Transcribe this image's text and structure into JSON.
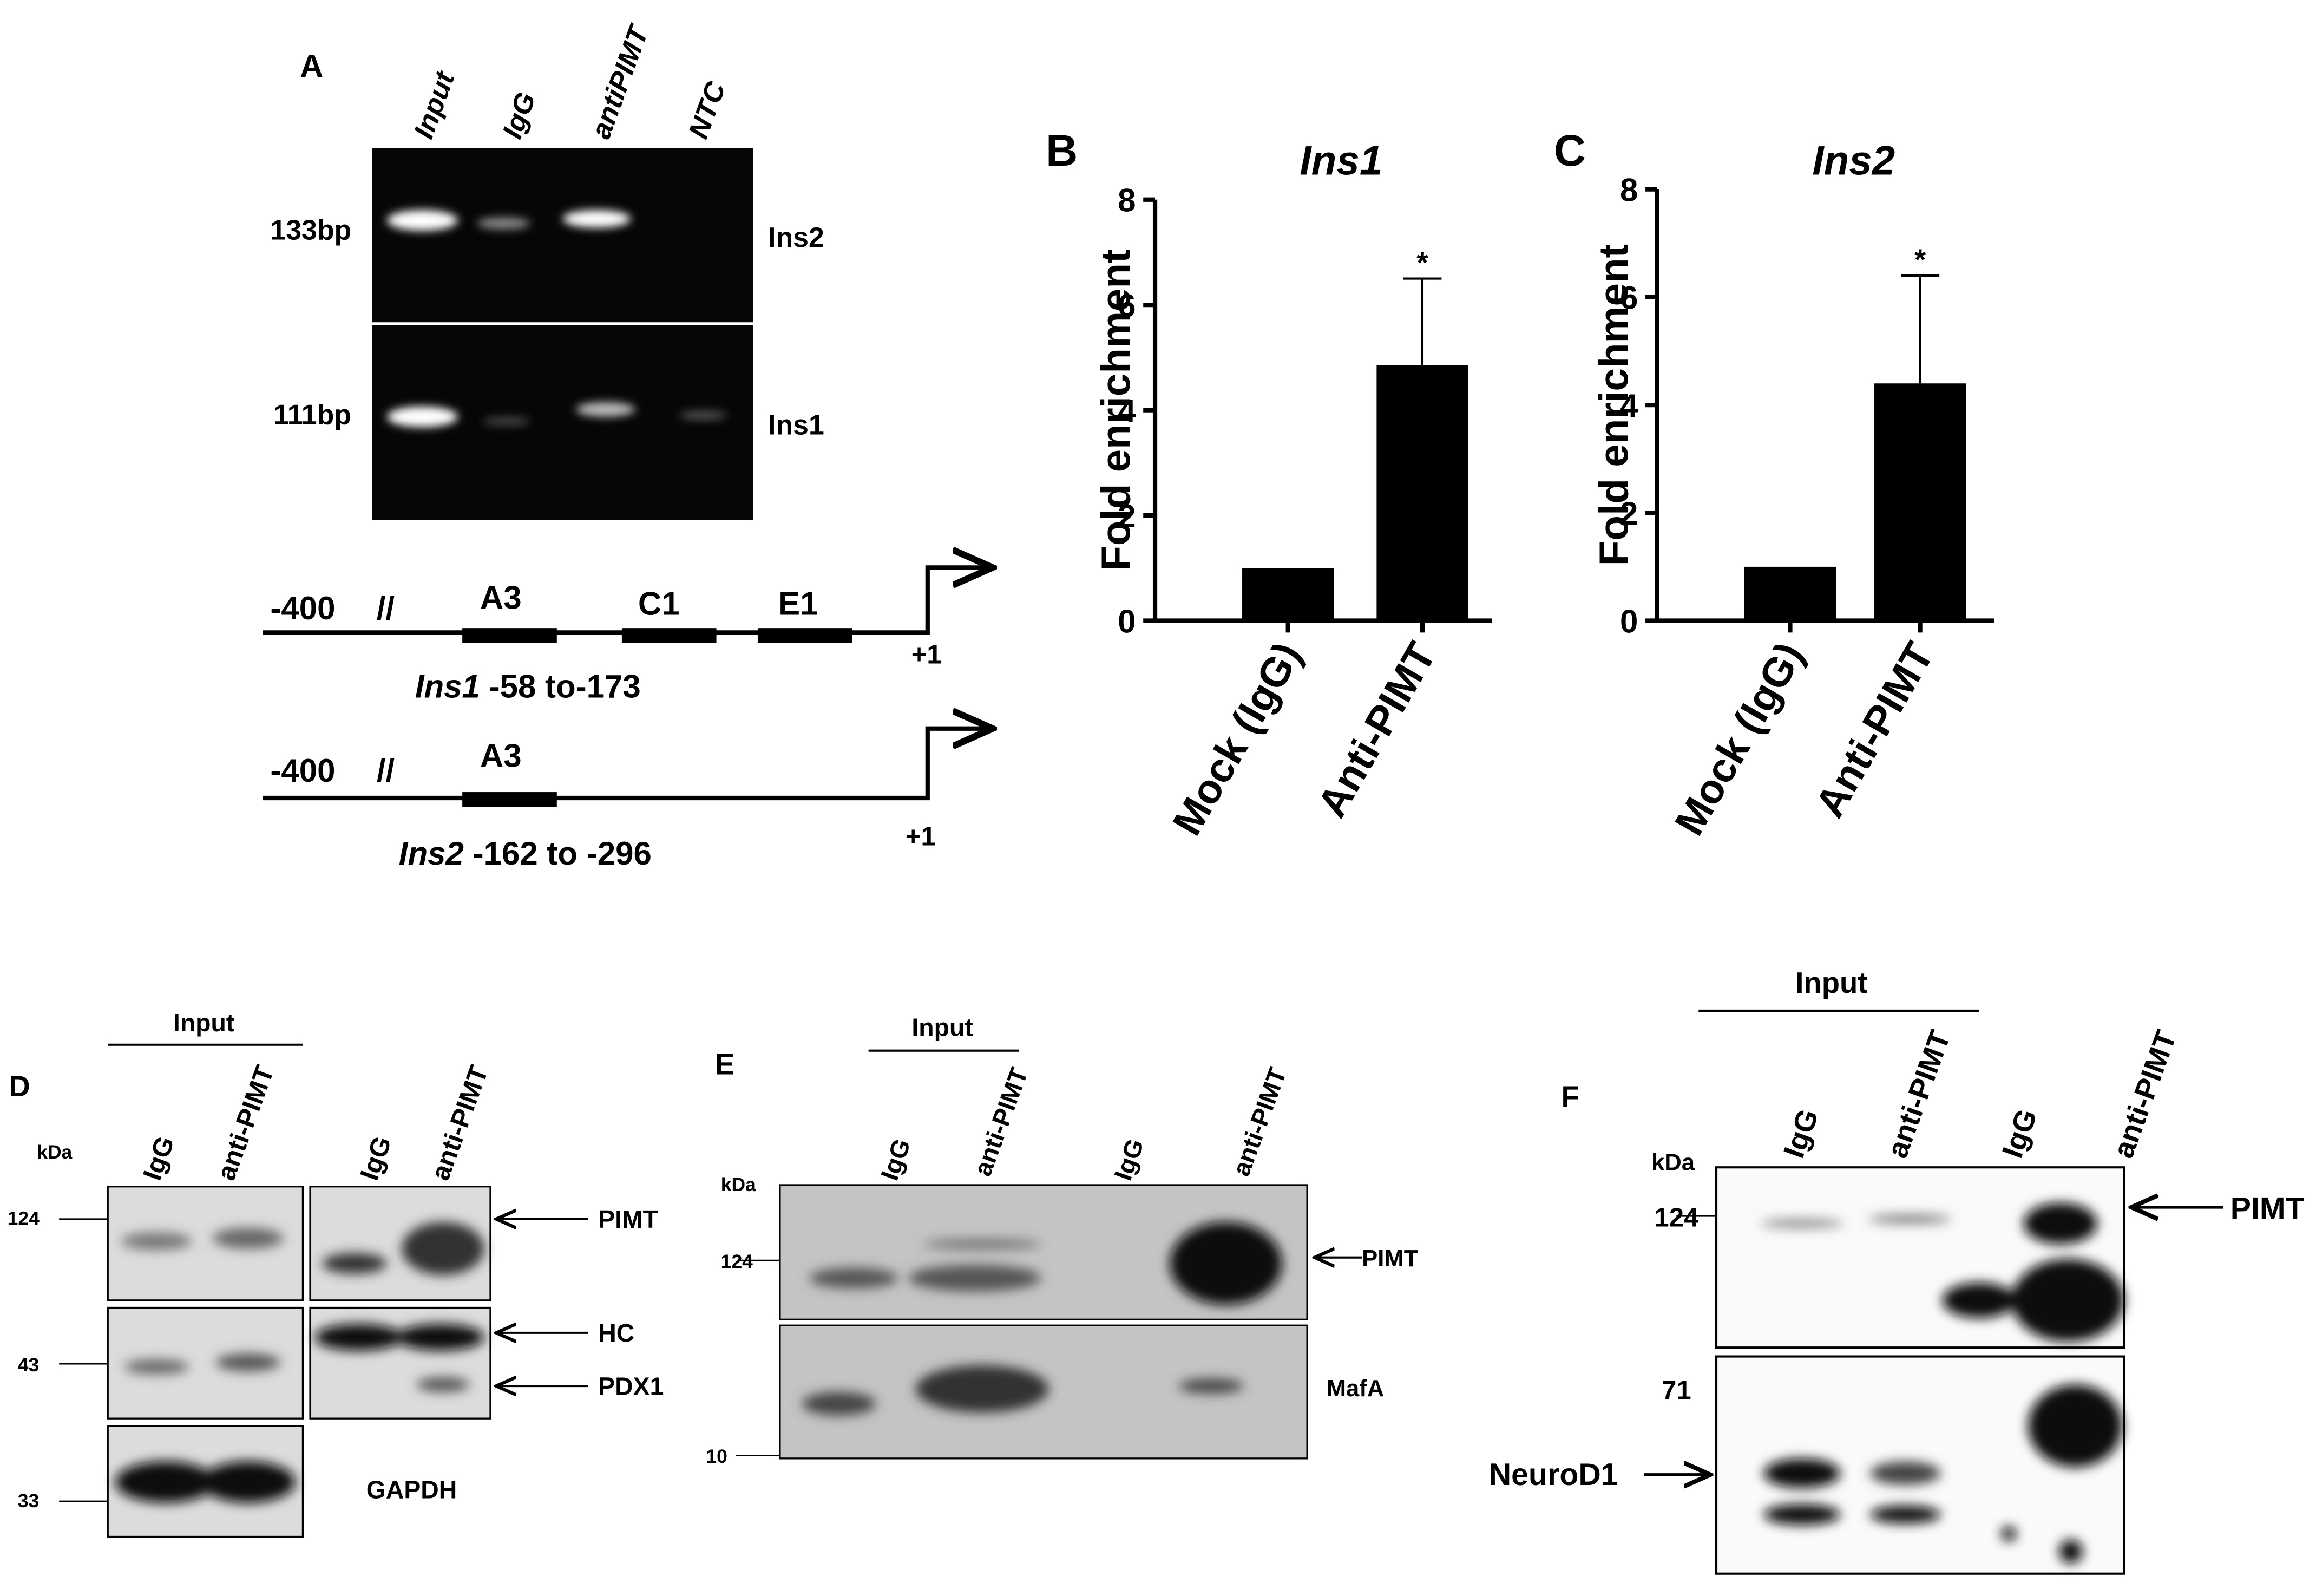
{
  "panel_a": {
    "label": "A",
    "lanes": [
      "Input",
      "IgG",
      "antiPIMT",
      "NTC"
    ],
    "bands": [
      {
        "size": "133bp",
        "gene": "Ins2"
      },
      {
        "size": "111bp",
        "gene": "Ins1"
      }
    ],
    "promoters": [
      {
        "start": "-400",
        "elements": [
          "A3",
          "C1",
          "E1"
        ],
        "tss": "+1",
        "gene": "Ins1",
        "range": "-58 to-173"
      },
      {
        "start": "-400",
        "elements": [
          "A3"
        ],
        "tss": "+1",
        "gene": "Ins2",
        "range": "-162 to -296"
      }
    ]
  },
  "chart_data": [
    {
      "type": "bar",
      "panel": "B",
      "title": "Ins1",
      "y_label": "Fold enrichment",
      "categories": [
        "Mock (IgG)",
        "Anti-PIMT"
      ],
      "values": [
        1,
        4.85
      ],
      "errors": [
        null,
        1.65
      ],
      "annotations": [
        {
          "category": "Anti-PIMT",
          "text": "*"
        }
      ],
      "color": "#000000",
      "ylim": [
        0,
        8
      ],
      "yticks": [
        0,
        2,
        4,
        6,
        8
      ]
    },
    {
      "type": "bar",
      "panel": "C",
      "title": "Ins2",
      "y_label": "Fold enrichment",
      "categories": [
        "Mock (IgG)",
        "Anti-PIMT"
      ],
      "values": [
        1,
        4.4
      ],
      "errors": [
        null,
        2.0
      ],
      "annotations": [
        {
          "category": "Anti-PIMT",
          "text": "*"
        }
      ],
      "color": "#000000",
      "ylim": [
        0,
        8
      ],
      "yticks": [
        0,
        2,
        4,
        6,
        8
      ]
    }
  ],
  "panel_d": {
    "label": "D",
    "group": "Input",
    "lanes": [
      "IgG",
      "anti-PIMT",
      "IgG",
      "anti-PIMT"
    ],
    "unit": "kDa",
    "markers": [
      "124",
      "43",
      "33"
    ],
    "proteins": [
      "PIMT",
      "HC",
      "PDX1",
      "GAPDH"
    ]
  },
  "panel_e": {
    "label": "E",
    "group": "Input",
    "lanes": [
      "IgG",
      "anti-PIMT",
      "IgG",
      "anti-PIMT"
    ],
    "unit": "kDa",
    "markers": [
      "124",
      "10"
    ],
    "proteins": [
      "PIMT",
      "MafA"
    ]
  },
  "panel_f": {
    "label": "F",
    "group": "Input",
    "lanes": [
      "IgG",
      "anti-PIMT",
      "IgG",
      "anti-PIMT"
    ],
    "unit": "kDa",
    "markers": [
      "124",
      "71"
    ],
    "proteins": [
      "PIMT",
      "NeuroD1"
    ]
  }
}
